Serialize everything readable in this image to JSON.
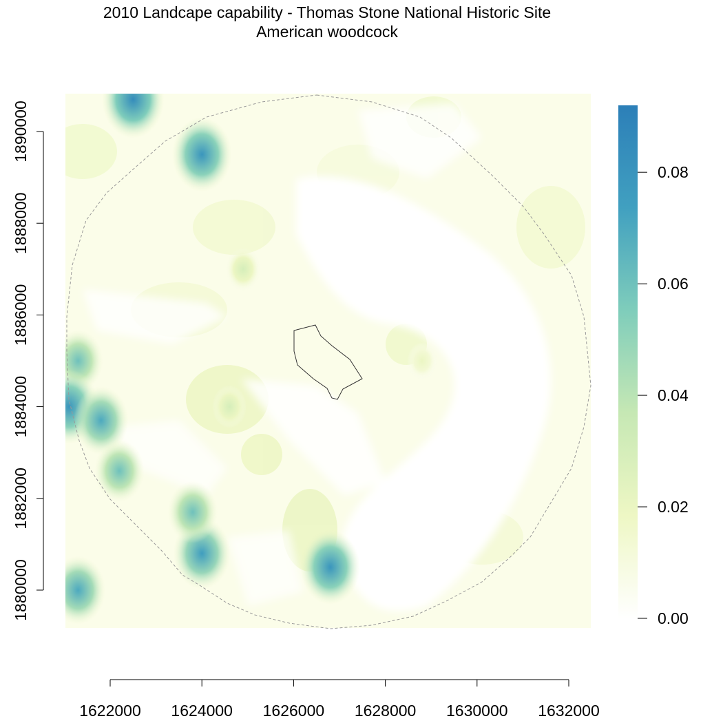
{
  "title": "2010 Landcape capability - Thomas Stone National Historic Site",
  "subtitle": "American woodcock",
  "x_ticks": [
    "1622000",
    "1624000",
    "1626000",
    "1628000",
    "1630000",
    "1632000"
  ],
  "y_ticks": [
    "1880000",
    "1882000",
    "1884000",
    "1886000",
    "1888000",
    "1890000"
  ],
  "legend": {
    "ticks": [
      "0.00",
      "0.02",
      "0.04",
      "0.06",
      "0.08"
    ],
    "min": 0.0,
    "max": 0.092,
    "colors": [
      "#ffffff",
      "#eef7c4",
      "#c6e8b4",
      "#7fcdbb",
      "#41a0c0",
      "#2c7fb8"
    ]
  },
  "chart_data": {
    "type": "heatmap",
    "title": "2010 Landcape capability - Thomas Stone National Historic Site",
    "subtitle": "American woodcock",
    "xlim": [
      1621000,
      1632500
    ],
    "ylim": [
      1879200,
      1890800
    ],
    "value_range": [
      0.0,
      0.092
    ],
    "hotspots": [
      {
        "x": 1622500,
        "y": 1890700,
        "value": 0.085
      },
      {
        "x": 1624000,
        "y": 1889500,
        "value": 0.08
      },
      {
        "x": 1621300,
        "y": 1885000,
        "value": 0.06
      },
      {
        "x": 1621100,
        "y": 1884000,
        "value": 0.08
      },
      {
        "x": 1621800,
        "y": 1883700,
        "value": 0.07
      },
      {
        "x": 1622200,
        "y": 1882600,
        "value": 0.06
      },
      {
        "x": 1624000,
        "y": 1880800,
        "value": 0.075
      },
      {
        "x": 1623800,
        "y": 1881700,
        "value": 0.06
      },
      {
        "x": 1626800,
        "y": 1880500,
        "value": 0.08
      },
      {
        "x": 1621300,
        "y": 1880000,
        "value": 0.07
      },
      {
        "x": 1624900,
        "y": 1887000,
        "value": 0.03
      },
      {
        "x": 1624600,
        "y": 1884000,
        "value": 0.03
      },
      {
        "x": 1628800,
        "y": 1885000,
        "value": 0.02
      }
    ]
  }
}
